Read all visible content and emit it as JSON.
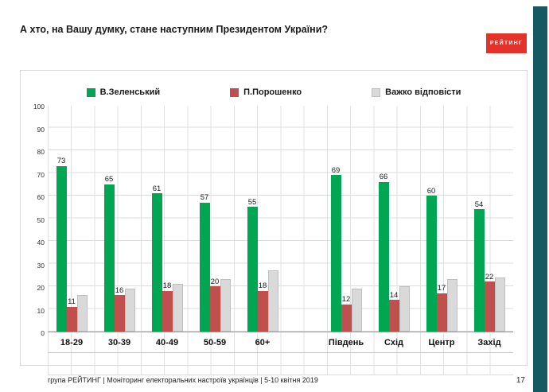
{
  "page": {
    "title": "А хто, на Вашу думку, стане наступним Президентом України?",
    "logo": "РЕЙТИНГ",
    "footer": "група РЕЙТИНГ | Моніторинг електоральних настроїв українців  |  5-10 квітня 2019",
    "page_number": "17"
  },
  "colors": {
    "zelensky_green": "#00A651",
    "poroshenko_red": "#C0504D",
    "undecided_gray": "#D9D9D9",
    "undecided_gray_border": "#BFBFBF",
    "stripe_teal": "#175962",
    "logo_red": "#E4322B"
  },
  "chart_data": {
    "type": "bar",
    "title": "А хто, на Вашу думку, стане наступним Президентом України?",
    "xlabel": "",
    "ylabel": "",
    "ylim": [
      0,
      100
    ],
    "ytick_step": 10,
    "grid": true,
    "legend_position": "top",
    "categories": [
      "18-29",
      "30-39",
      "40-49",
      "50-59",
      "60+",
      "Південь",
      "Схід",
      "Центр",
      "Захід"
    ],
    "group_break_after_index": 4,
    "series": [
      {
        "name": "В.Зеленський",
        "color": "#00A651",
        "labels_visible": true,
        "values": [
          73,
          65,
          61,
          57,
          55,
          69,
          66,
          60,
          54
        ]
      },
      {
        "name": "П.Порошенко",
        "color": "#C0504D",
        "labels_visible": true,
        "values": [
          11,
          16,
          18,
          20,
          18,
          12,
          14,
          17,
          22
        ]
      },
      {
        "name": "Важко відповісти",
        "color": "#D9D9D9",
        "border": "#BFBFBF",
        "labels_visible": false,
        "values": [
          16,
          19,
          21,
          23,
          27,
          19,
          20,
          23,
          24
        ]
      }
    ]
  }
}
